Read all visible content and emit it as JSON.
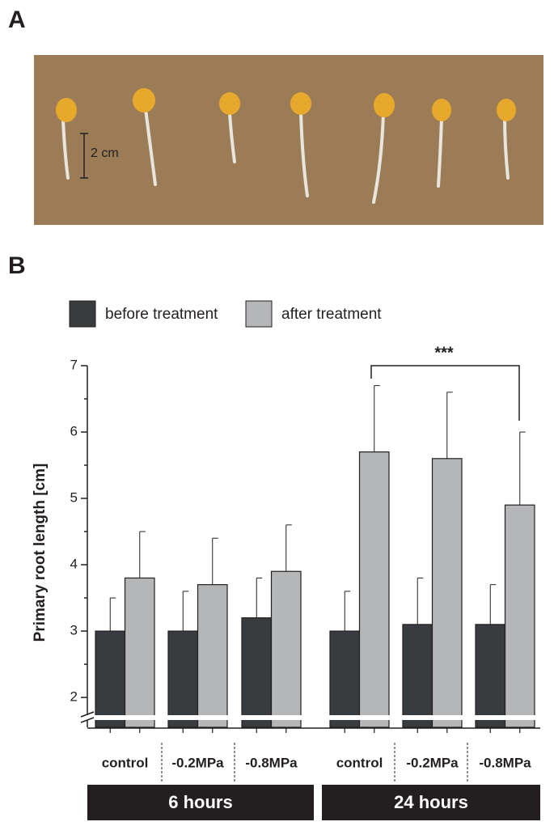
{
  "panel_a": {
    "label": "A",
    "scale_bar": "2 cm"
  },
  "panel_b": {
    "label": "B"
  },
  "chart_data": {
    "type": "bar",
    "y_label": "Primary root length [cm]",
    "categories": [
      "control",
      "-0.2MPa",
      "-0.8MPa",
      "control",
      "-0.2MPa",
      "-0.8MPa"
    ],
    "groups": [
      "6 hours",
      "24 hours"
    ],
    "series": [
      {
        "name": "before treatment",
        "color": "#383c3e",
        "values": [
          3.0,
          3.0,
          3.2,
          3.0,
          3.1,
          3.1
        ],
        "errors": [
          0.5,
          0.6,
          0.6,
          0.6,
          0.7,
          0.6
        ]
      },
      {
        "name": "after treatment",
        "color": "#b5b6b8",
        "values": [
          3.8,
          3.7,
          3.9,
          5.7,
          5.6,
          4.9
        ],
        "errors": [
          0.7,
          0.7,
          0.7,
          1.0,
          1.0,
          1.1
        ]
      }
    ],
    "annotation": "***",
    "ylim": [
      1.55,
      7
    ],
    "yticks": [
      2,
      3,
      4,
      5,
      6,
      7
    ]
  }
}
